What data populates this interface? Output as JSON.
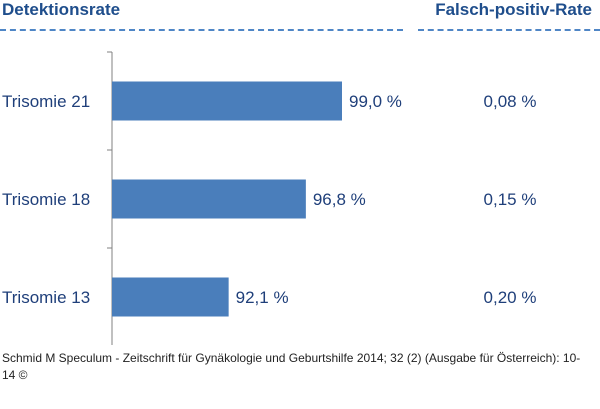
{
  "headers": {
    "left": "Detektionsrate",
    "right": "Falsch-positiv-Rate"
  },
  "chart_data": {
    "type": "bar",
    "orientation": "horizontal",
    "categories": [
      "Trisomie 21",
      "Trisomie 18",
      "Trisomie 13"
    ],
    "values": [
      99.0,
      96.8,
      92.1
    ],
    "value_labels": [
      "99,0 %",
      "96,8 %",
      "92,1 %"
    ],
    "secondary_labels": [
      "0,08 %",
      "0,15 %",
      "0,20 %"
    ],
    "xlim": [
      85,
      100
    ],
    "bar_color": "#4a7ebb",
    "label_color": "#1f3f7a",
    "grid": false
  },
  "footer": {
    "source": "Schmid M Speculum - Zeitschrift für Gynäkologie und Geburtshilfe 2014; 32 (2) (Ausgabe für Österreich): 10-14 ©"
  }
}
